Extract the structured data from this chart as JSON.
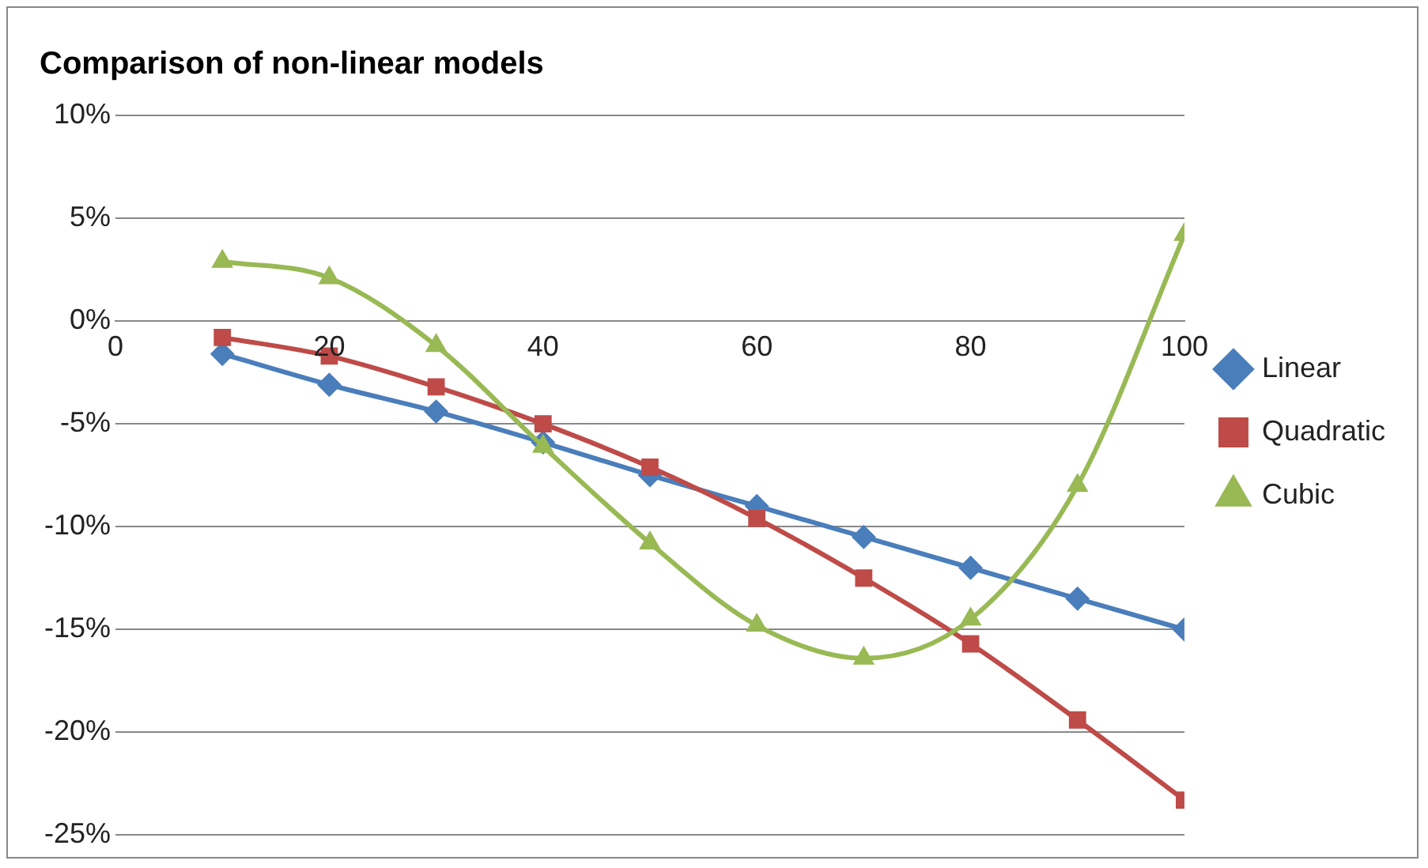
{
  "chart_data": {
    "type": "line",
    "title": "Comparison of non-linear models",
    "x": [
      10,
      20,
      30,
      40,
      50,
      60,
      70,
      80,
      90,
      100
    ],
    "xlim": [
      0,
      100
    ],
    "xticks": [
      0,
      20,
      40,
      60,
      80,
      100
    ],
    "ylim": [
      -25,
      10
    ],
    "yticks": [
      {
        "value": -25,
        "label": "-25%"
      },
      {
        "value": -20,
        "label": "-20%"
      },
      {
        "value": -15,
        "label": "-15%"
      },
      {
        "value": -10,
        "label": "-10%"
      },
      {
        "value": -5,
        "label": "-5%"
      },
      {
        "value": 0,
        "label": "0%"
      },
      {
        "value": 5,
        "label": "5%"
      },
      {
        "value": 10,
        "label": "10%"
      }
    ],
    "grid": "y",
    "legend": "right",
    "line_style": "solid",
    "series": [
      {
        "name": "Linear",
        "color": "#4a7ebb",
        "marker": "diamond",
        "values": [
          -1.6,
          -3.1,
          -4.4,
          -5.9,
          -7.5,
          -9.0,
          -10.5,
          -12.0,
          -13.5,
          -15.0
        ]
      },
      {
        "name": "Quadratic",
        "color": "#be4b48",
        "marker": "square",
        "values": [
          -0.8,
          -1.7,
          -3.2,
          -5.0,
          -7.1,
          -9.6,
          -12.5,
          -15.7,
          -19.4,
          -23.3
        ]
      },
      {
        "name": "Cubic",
        "color": "#98b954",
        "marker": "triangle",
        "values": [
          2.9,
          2.1,
          -1.2,
          -6.1,
          -10.8,
          -14.8,
          -16.4,
          -14.5,
          -8.0,
          4.2
        ]
      }
    ]
  }
}
